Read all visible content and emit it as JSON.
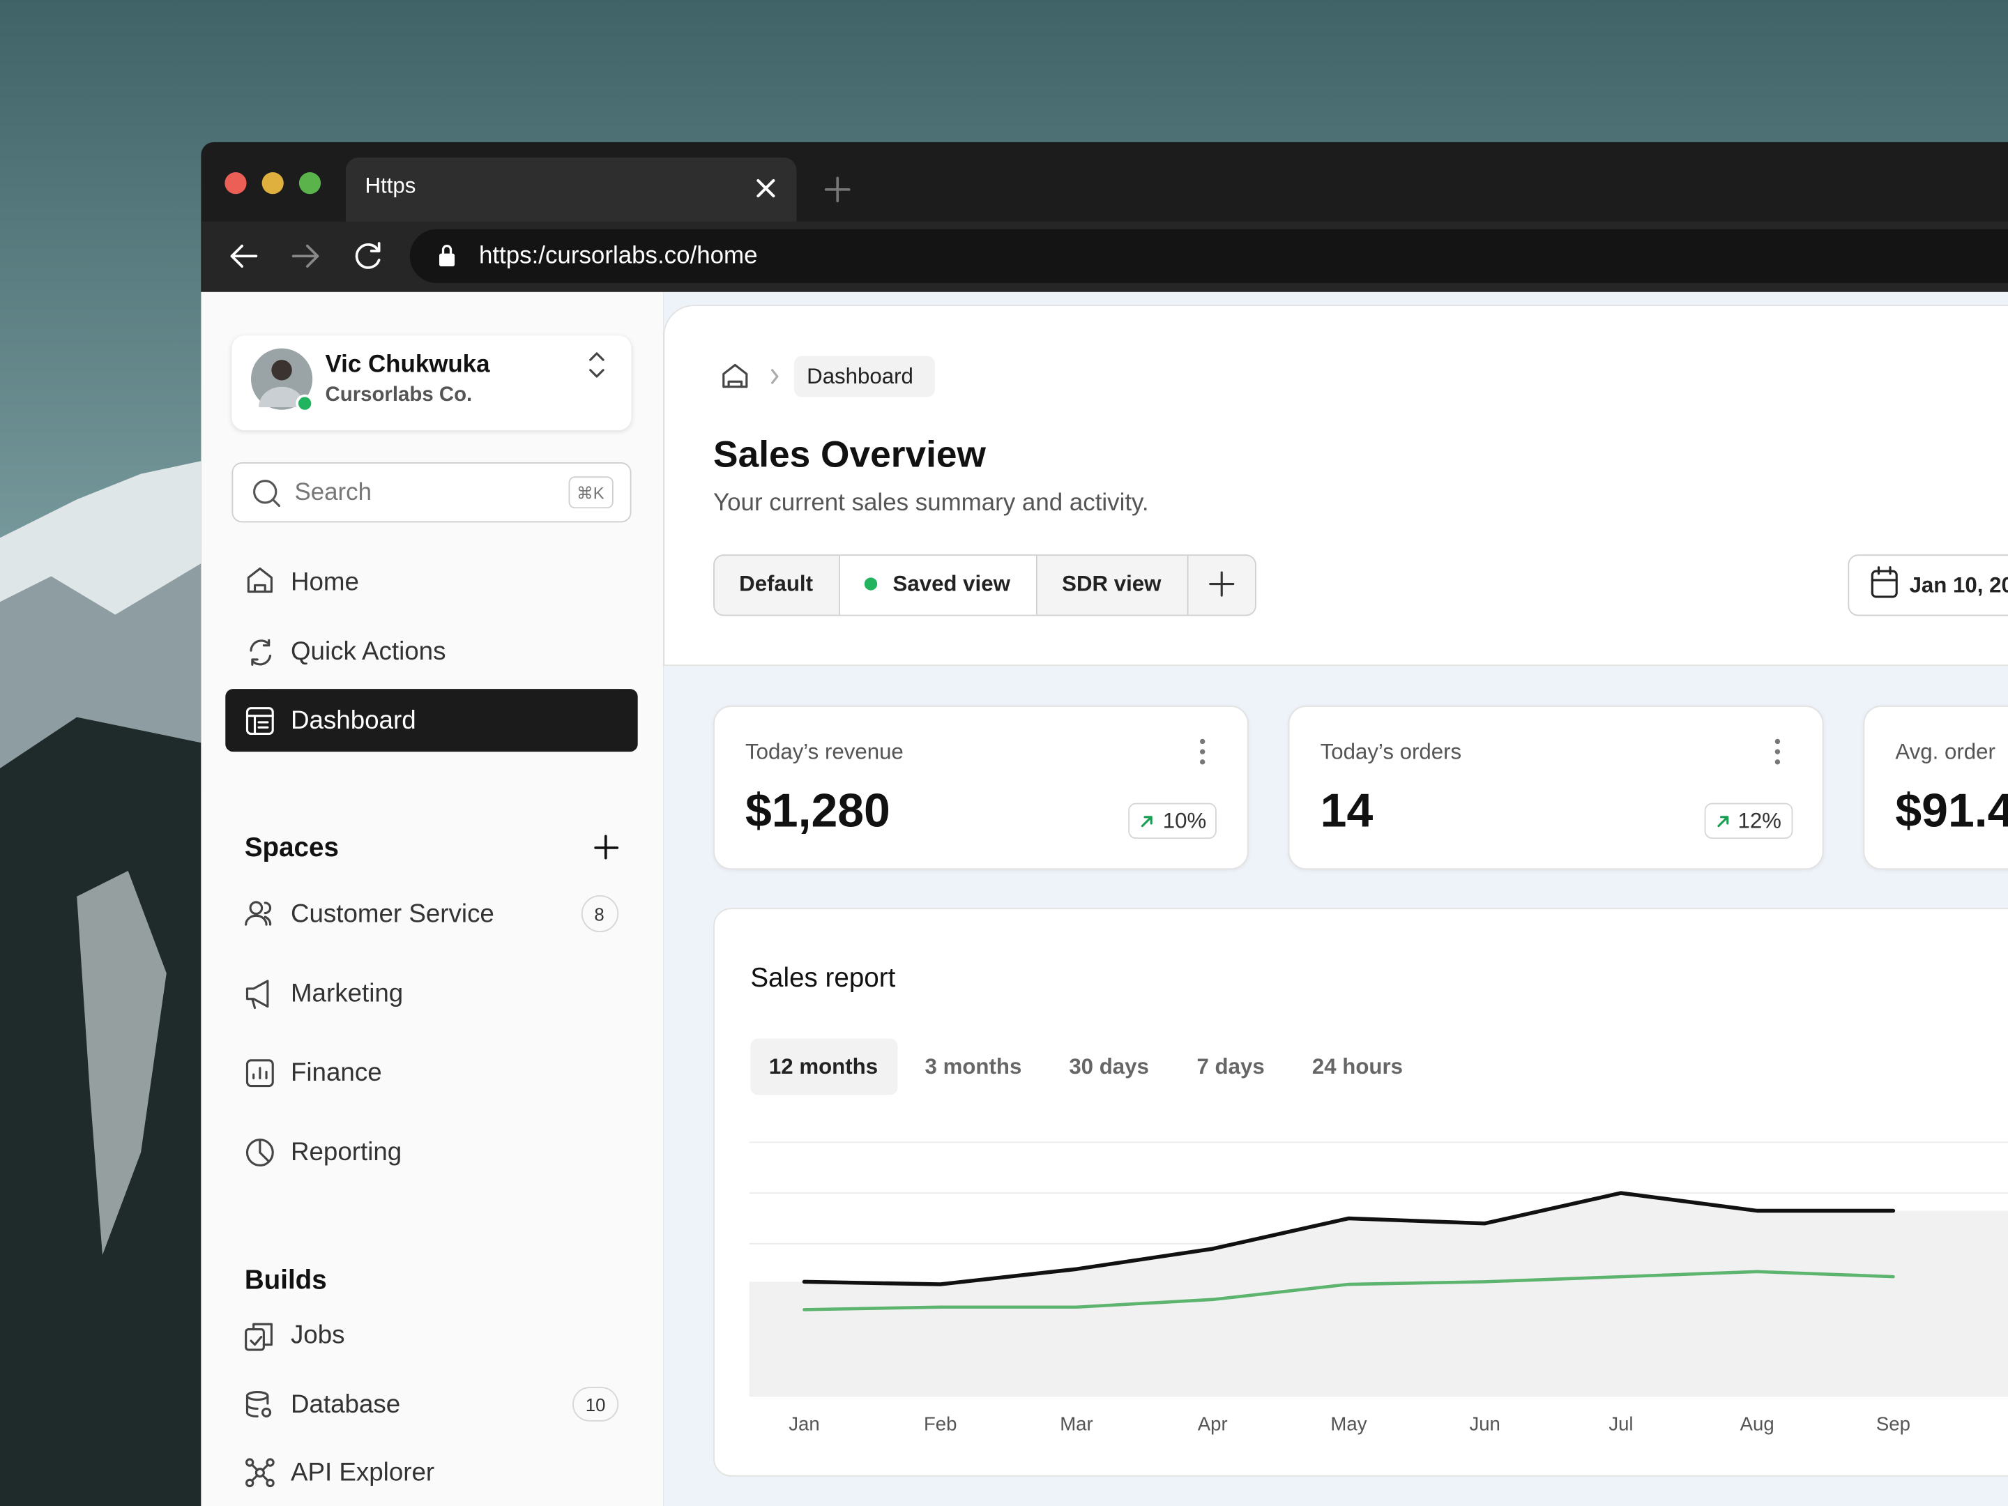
{
  "browser": {
    "tab_title": "Https",
    "url": "https:/cursorlabs.co/home"
  },
  "sidebar": {
    "user": {
      "name": "Vic Chukwuka",
      "company": "Cursorlabs Co."
    },
    "search": {
      "placeholder": "Search",
      "shortcut": "⌘K"
    },
    "nav": [
      "Home",
      "Quick Actions",
      "Dashboard"
    ],
    "spaces": {
      "title": "Spaces",
      "items": [
        {
          "label": "Customer Service",
          "count": 8
        },
        {
          "label": "Marketing"
        },
        {
          "label": "Finance"
        },
        {
          "label": "Reporting"
        }
      ]
    },
    "builds": {
      "title": "Builds",
      "items": [
        {
          "label": "Jobs"
        },
        {
          "label": "Database",
          "count": 10
        },
        {
          "label": "API Explorer"
        }
      ]
    }
  },
  "header": {
    "breadcrumb": "Dashboard",
    "title": "Sales Overview",
    "subtitle": "Your current sales summary and activity.",
    "views": [
      "Default",
      "Saved view",
      "SDR view"
    ],
    "date": "Jan 10, 20"
  },
  "stats": [
    {
      "label": "Today’s revenue",
      "value": "$1,280",
      "change": "10%"
    },
    {
      "label": "Today’s orders",
      "value": "14",
      "change": "12%"
    },
    {
      "label": "Avg. order",
      "value": "$91.4"
    }
  ],
  "chart_data": {
    "type": "line",
    "title": "Sales report",
    "periods": [
      "12 months",
      "3 months",
      "30 days",
      "7 days",
      "24 hours"
    ],
    "categories": [
      "Jan",
      "Feb",
      "Mar",
      "Apr",
      "May",
      "Jun",
      "Jul",
      "Aug",
      "Sep"
    ],
    "series": [
      {
        "color": "#111111",
        "values": [
          45,
          44,
          50,
          58,
          70,
          68,
          80,
          73,
          73
        ]
      },
      {
        "color": "#5cb46e",
        "values": [
          34,
          35,
          35,
          38,
          44,
          45,
          47,
          49,
          47
        ]
      }
    ],
    "ylim": [
      0,
      100
    ]
  }
}
